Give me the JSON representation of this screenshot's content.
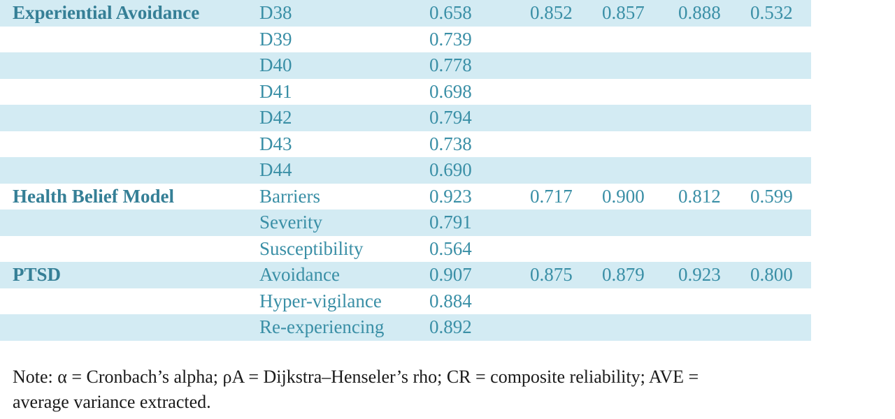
{
  "rows": [
    {
      "construct": "Experiential Avoidance",
      "item": "D38",
      "loading": "0.658",
      "alpha": "0.852",
      "rhoa": "0.857",
      "cr": "0.888",
      "ave": "0.532"
    },
    {
      "construct": "",
      "item": "D39",
      "loading": "0.739",
      "alpha": "",
      "rhoa": "",
      "cr": "",
      "ave": ""
    },
    {
      "construct": "",
      "item": "D40",
      "loading": "0.778",
      "alpha": "",
      "rhoa": "",
      "cr": "",
      "ave": ""
    },
    {
      "construct": "",
      "item": "D41",
      "loading": "0.698",
      "alpha": "",
      "rhoa": "",
      "cr": "",
      "ave": ""
    },
    {
      "construct": "",
      "item": "D42",
      "loading": "0.794",
      "alpha": "",
      "rhoa": "",
      "cr": "",
      "ave": ""
    },
    {
      "construct": "",
      "item": "D43",
      "loading": "0.738",
      "alpha": "",
      "rhoa": "",
      "cr": "",
      "ave": ""
    },
    {
      "construct": "",
      "item": "D44",
      "loading": "0.690",
      "alpha": "",
      "rhoa": "",
      "cr": "",
      "ave": ""
    },
    {
      "construct": "Health Belief Model",
      "item": "Barriers",
      "loading": "0.923",
      "alpha": "0.717",
      "rhoa": "0.900",
      "cr": "0.812",
      "ave": "0.599"
    },
    {
      "construct": "",
      "item": "Severity",
      "loading": "0.791",
      "alpha": "",
      "rhoa": "",
      "cr": "",
      "ave": ""
    },
    {
      "construct": "",
      "item": "Susceptibility",
      "loading": "0.564",
      "alpha": "",
      "rhoa": "",
      "cr": "",
      "ave": ""
    },
    {
      "construct": "PTSD",
      "item": "Avoidance",
      "loading": "0.907",
      "alpha": "0.875",
      "rhoa": "0.879",
      "cr": "0.923",
      "ave": "0.800"
    },
    {
      "construct": "",
      "item": "Hyper-vigilance",
      "loading": "0.884",
      "alpha": "",
      "rhoa": "",
      "cr": "",
      "ave": ""
    },
    {
      "construct": "",
      "item": "Re-experiencing",
      "loading": "0.892",
      "alpha": "",
      "rhoa": "",
      "cr": "",
      "ave": ""
    }
  ],
  "note": {
    "line1": "Note: α = Cronbach’s alpha; ρA = Dijkstra–Henseler’s rho; CR = composite reliability; AVE =",
    "line2": "average variance extracted."
  },
  "colors": {
    "row_shade": "#d3ebf3",
    "text_accent": "#3a8fa6",
    "note_text": "#1a1a1a"
  }
}
